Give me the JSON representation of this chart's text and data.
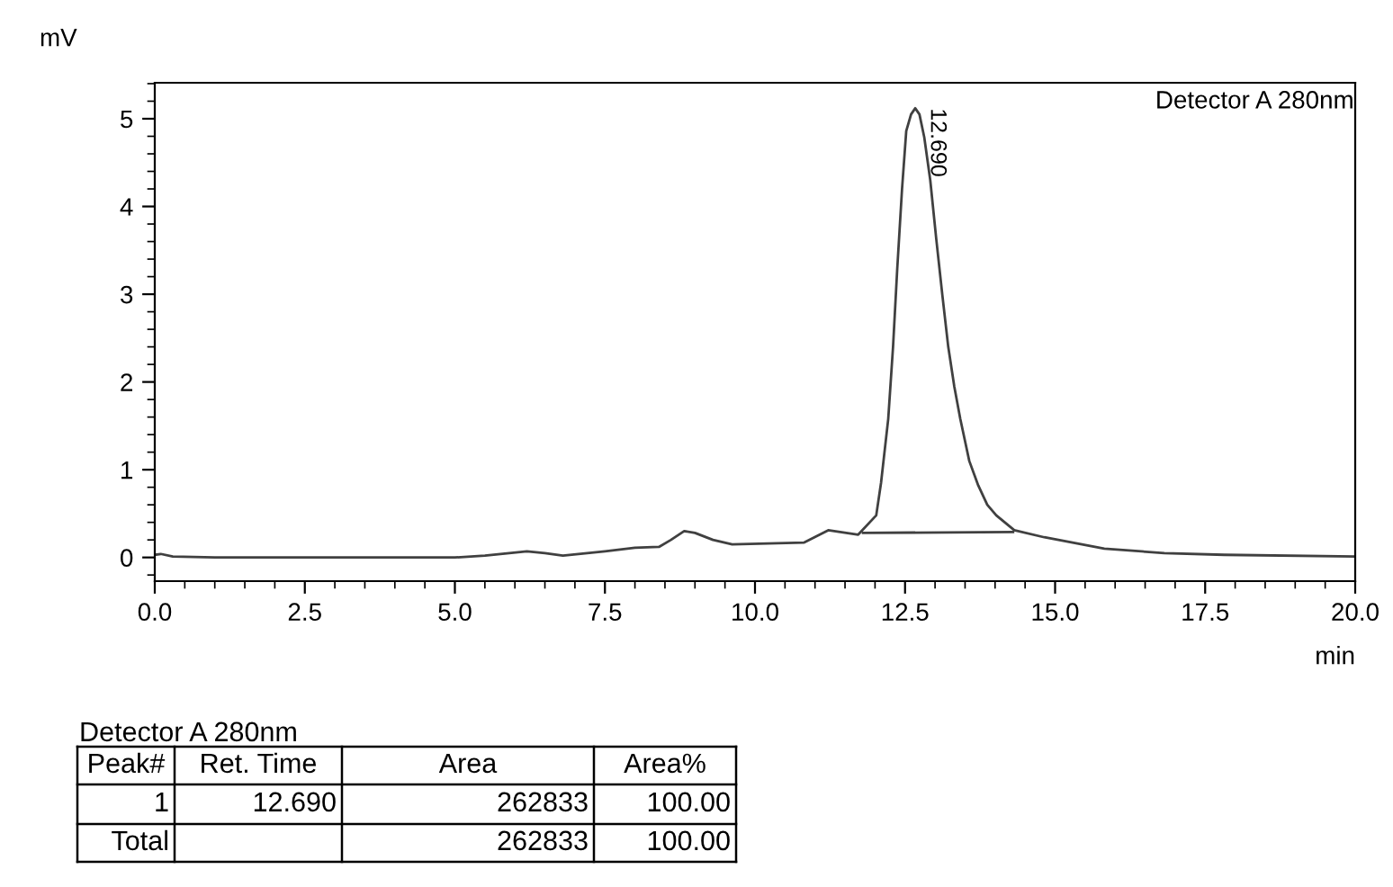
{
  "chart_data": {
    "type": "line",
    "xlabel": "min",
    "ylabel": "mV",
    "xlim": [
      0,
      20
    ],
    "ylim": [
      -0.27,
      5.41
    ],
    "xticks": [
      {
        "value": 0,
        "label": "0.0"
      },
      {
        "value": 2.5,
        "label": "2.5"
      },
      {
        "value": 5,
        "label": "5.0"
      },
      {
        "value": 7.5,
        "label": "7.5"
      },
      {
        "value": 10,
        "label": "10.0"
      },
      {
        "value": 12.5,
        "label": "12.5"
      },
      {
        "value": 15,
        "label": "15.0"
      },
      {
        "value": 17.5,
        "label": "17.5"
      },
      {
        "value": 20,
        "label": "20.0"
      }
    ],
    "yticks": [
      0,
      1,
      2,
      3,
      4,
      5
    ],
    "grid": false,
    "marker": "none",
    "line_style": "solid",
    "series": [
      {
        "color": "#404040",
        "x": [
          0,
          0.1,
          0.3,
          1,
          2,
          3,
          4,
          5,
          5.5,
          6.2,
          6.5,
          6.8,
          7.5,
          8,
          8.4,
          8.6,
          8.82,
          9.0,
          9.3,
          9.62,
          10.82,
          11.22,
          11.72,
          12.02,
          12.1,
          12.22,
          12.3,
          12.37,
          12.45,
          12.52,
          12.6,
          12.67,
          12.74,
          12.82,
          12.92,
          13.02,
          13.12,
          13.22,
          13.32,
          13.42,
          13.57,
          13.72,
          13.87,
          14.02,
          14.32,
          14.82,
          15.82,
          16.82,
          17.82,
          20
        ],
        "values": [
          0.03,
          0.04,
          0.01,
          0,
          0,
          0,
          0,
          0,
          0.02,
          0.07,
          0.05,
          0.02,
          0.07,
          0.11,
          0.12,
          0.2,
          0.3,
          0.28,
          0.2,
          0.15,
          0.17,
          0.31,
          0.26,
          0.48,
          0.85,
          1.58,
          2.4,
          3.29,
          4.2,
          4.86,
          5.05,
          5.12,
          5.05,
          4.79,
          4.3,
          3.63,
          3.0,
          2.4,
          1.95,
          1.58,
          1.1,
          0.82,
          0.6,
          0.48,
          0.31,
          0.23,
          0.1,
          0.05,
          0.03,
          0.01
        ]
      },
      {
        "color": "#404040",
        "x": [
          11.8,
          14.3
        ],
        "values": [
          0.28,
          0.29
        ]
      }
    ],
    "annotations": [
      "Detector A 280nm",
      {
        "text": "12.690",
        "x": 12.69,
        "y": 5.12
      },
      "Detector A 280nm",
      "Peak#",
      "Ret. Time",
      "Area",
      "Area%",
      "1",
      "12.690",
      "262833",
      "100.00",
      "Total",
      "262833",
      "100.00"
    ]
  }
}
